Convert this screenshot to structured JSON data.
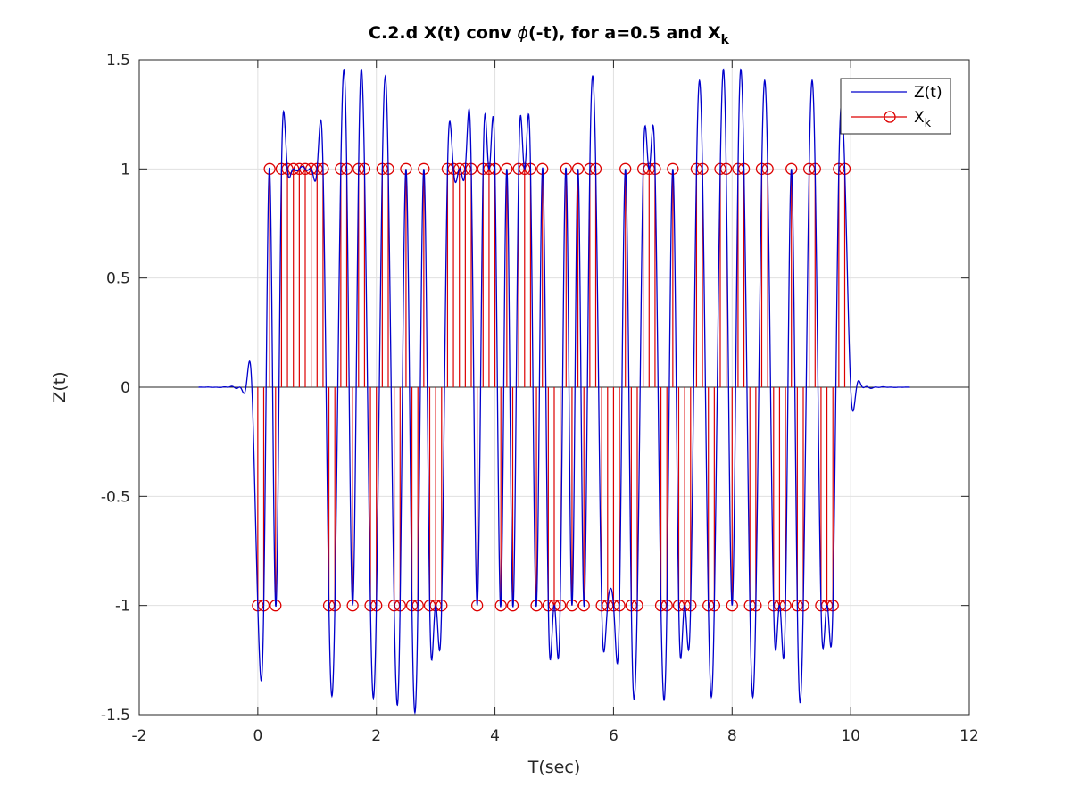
{
  "chart_data": {
    "type": "line",
    "title": {
      "prefix": "C.2.d X(t) conv ",
      "phi": "ϕ",
      "middle": "(-t), for a=0.5 and X",
      "subscript": "k"
    },
    "xlabel": "T(sec)",
    "ylabel": "Z(t)",
    "xlim": [
      -2,
      12
    ],
    "ylim": [
      -1.5,
      1.5
    ],
    "xticks": [
      -2,
      0,
      2,
      4,
      6,
      8,
      10,
      12
    ],
    "xtick_labels": [
      "-2",
      "0",
      "2",
      "4",
      "6",
      "8",
      "10",
      "12"
    ],
    "yticks": [
      -1.5,
      -1,
      -0.5,
      0,
      0.5,
      1,
      1.5
    ],
    "ytick_labels": [
      "-1.5",
      "-1",
      "-0.5",
      "0",
      "0.5",
      "1",
      "1.5"
    ],
    "grid": true,
    "legend_position": "top-right",
    "series": [
      {
        "name": "Z(t)",
        "legend_label": "Z(t)",
        "kind": "line",
        "color": "#0000cc",
        "x_range": [
          -1,
          11
        ],
        "pulse": "root-raised-cosine",
        "rolloff": 0.5,
        "symbol_period": 0.1
      },
      {
        "name": "X_k",
        "legend_label": "X",
        "legend_subscript": "k",
        "kind": "stem",
        "color": "#dd0000",
        "x0": 0,
        "dx": 0.1,
        "values": [
          -1,
          -1,
          1,
          -1,
          1,
          1,
          1,
          1,
          1,
          1,
          1,
          1,
          -1,
          -1,
          1,
          1,
          -1,
          1,
          1,
          -1,
          -1,
          1,
          1,
          -1,
          -1,
          1,
          -1,
          -1,
          1,
          -1,
          -1,
          -1,
          1,
          1,
          1,
          1,
          1,
          -1,
          1,
          1,
          1,
          -1,
          1,
          -1,
          1,
          1,
          1,
          -1,
          1,
          -1,
          -1,
          -1,
          1,
          -1,
          1,
          -1,
          1,
          1,
          -1,
          -1,
          -1,
          -1,
          1,
          -1,
          -1,
          1,
          1,
          1,
          -1,
          -1,
          1,
          -1,
          -1,
          -1,
          1,
          1,
          -1,
          -1,
          1,
          1,
          -1,
          1,
          1,
          -1,
          -1,
          1,
          1,
          -1,
          -1,
          -1,
          1,
          -1,
          -1,
          1,
          1,
          -1,
          -1,
          -1,
          1,
          1
        ]
      }
    ]
  }
}
